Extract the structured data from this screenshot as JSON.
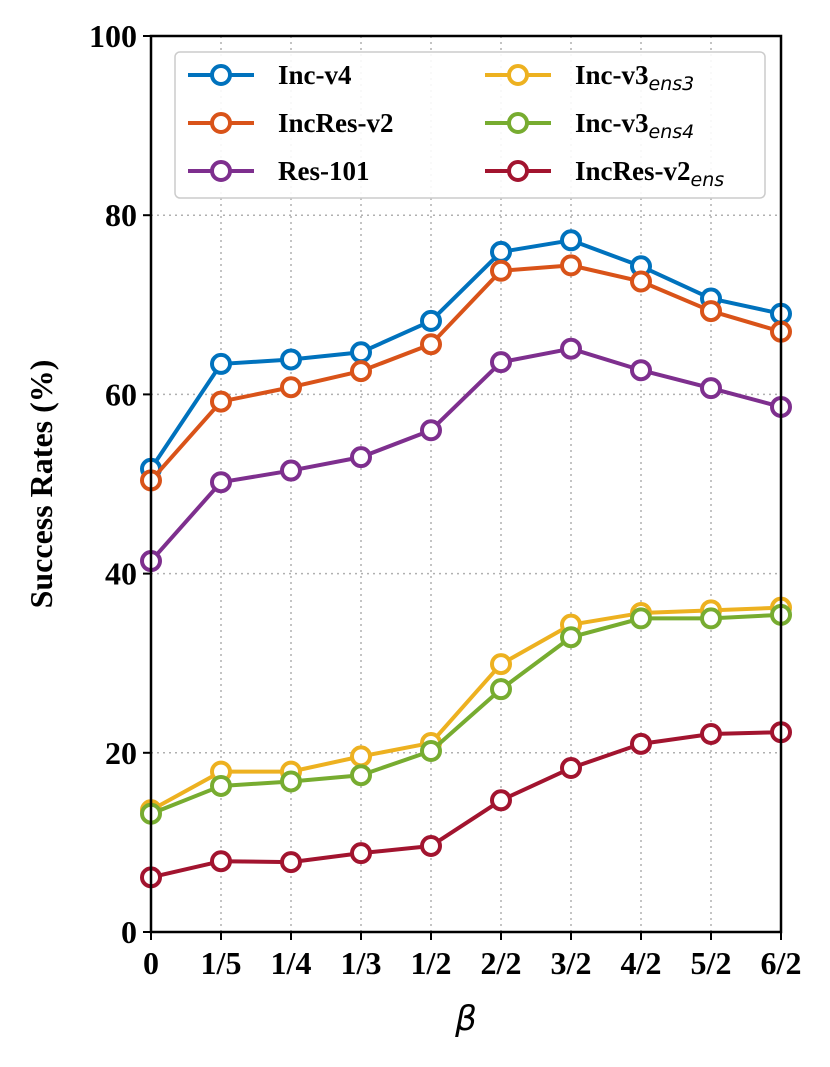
{
  "chart_data": {
    "type": "line",
    "title": "",
    "xlabel": "β",
    "ylabel": "Success Rates (%)",
    "categories": [
      "0",
      "1/5",
      "1/4",
      "1/3",
      "1/2",
      "2/2",
      "3/2",
      "4/2",
      "5/2",
      "6/2"
    ],
    "ylim": [
      0,
      100
    ],
    "yticks": [
      0,
      20,
      40,
      60,
      80,
      100
    ],
    "grid": true,
    "legend_position": "top",
    "series": [
      {
        "name": "Inc-v4",
        "name_base": "Inc-v4",
        "name_sub": "",
        "color": "#0072BD",
        "values": [
          51.7,
          63.4,
          63.9,
          64.7,
          68.2,
          75.9,
          77.2,
          74.3,
          70.7,
          69.0
        ]
      },
      {
        "name": "IncRes-v2",
        "name_base": "IncRes-v2",
        "name_sub": "",
        "color": "#D95319",
        "values": [
          50.4,
          59.2,
          60.8,
          62.6,
          65.6,
          73.8,
          74.4,
          72.6,
          69.3,
          67.0
        ]
      },
      {
        "name": "Res-101",
        "name_base": "Res-101",
        "name_sub": "",
        "color": "#7E2F8E",
        "values": [
          41.4,
          50.2,
          51.5,
          53.0,
          56.0,
          63.6,
          65.1,
          62.7,
          60.7,
          58.6
        ]
      },
      {
        "name": "Inc-v3ens3",
        "name_base": "Inc-v3",
        "name_sub": "ens3",
        "color": "#EDB120",
        "values": [
          13.6,
          17.9,
          17.9,
          19.6,
          21.1,
          29.9,
          34.3,
          35.6,
          35.9,
          36.2
        ]
      },
      {
        "name": "Inc-v3ens4",
        "name_base": "Inc-v3",
        "name_sub": "ens4",
        "color": "#77AC30",
        "values": [
          13.2,
          16.3,
          16.8,
          17.5,
          20.2,
          27.1,
          32.9,
          35.0,
          35.0,
          35.4
        ]
      },
      {
        "name": "IncRes-v2ens",
        "name_base": "IncRes-v2",
        "name_sub": "ens",
        "color": "#A2142F",
        "values": [
          6.1,
          7.9,
          7.8,
          8.8,
          9.6,
          14.7,
          18.3,
          21.0,
          22.1,
          22.3
        ]
      }
    ]
  }
}
